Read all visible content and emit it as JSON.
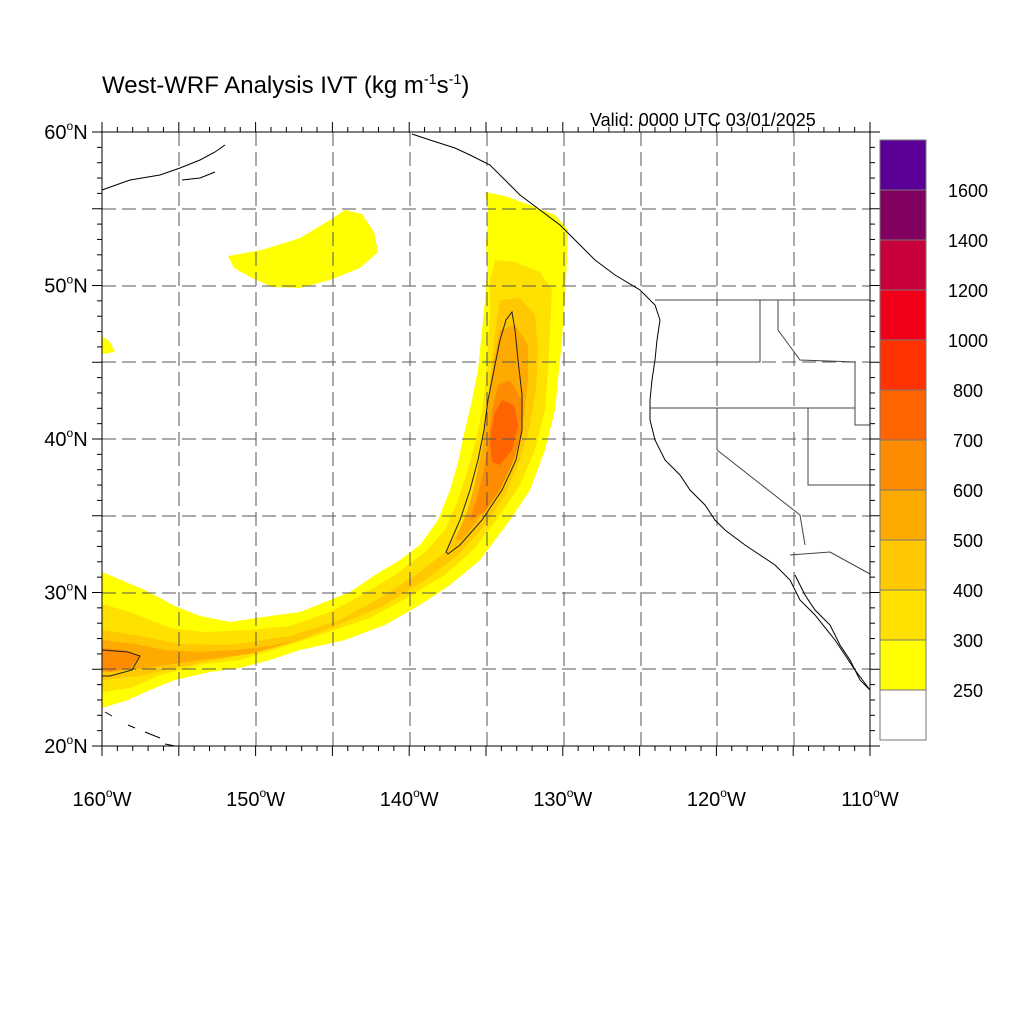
{
  "header": {
    "title_main": "West-WRF Analysis IVT (kg m",
    "title_exp1": "-1",
    "title_mid": "s",
    "title_exp2": "-1",
    "title_end": ")",
    "valid_time": "Valid: 0000 UTC 03/01/2025"
  },
  "map": {
    "lon_range": [
      -160,
      -110
    ],
    "lat_range": [
      20,
      60
    ],
    "lon_ticks": [
      {
        "value": -160,
        "label": "160",
        "hemi": "W"
      },
      {
        "value": -150,
        "label": "150",
        "hemi": "W"
      },
      {
        "value": -140,
        "label": "140",
        "hemi": "W"
      },
      {
        "value": -130,
        "label": "130",
        "hemi": "W"
      },
      {
        "value": -120,
        "label": "120",
        "hemi": "W"
      },
      {
        "value": -110,
        "label": "110",
        "hemi": "W"
      }
    ],
    "lat_ticks": [
      {
        "value": 20,
        "label": "20",
        "hemi": "N"
      },
      {
        "value": 30,
        "label": "30",
        "hemi": "N"
      },
      {
        "value": 40,
        "label": "40",
        "hemi": "N"
      },
      {
        "value": 50,
        "label": "50",
        "hemi": "N"
      },
      {
        "value": 60,
        "label": "60",
        "hemi": "N"
      }
    ],
    "grid_style": "dashed"
  },
  "colorbar": {
    "levels": [
      "250",
      "300",
      "400",
      "500",
      "600",
      "700",
      "800",
      "1000",
      "1200",
      "1400",
      "1600"
    ],
    "colors": [
      "#ffffff",
      "#ffff00",
      "#ffe100",
      "#ffc800",
      "#ffaa00",
      "#ff8c00",
      "#ff6400",
      "#ff3200",
      "#f00019",
      "#c8003c",
      "#82005f",
      "#5a0096"
    ]
  }
}
